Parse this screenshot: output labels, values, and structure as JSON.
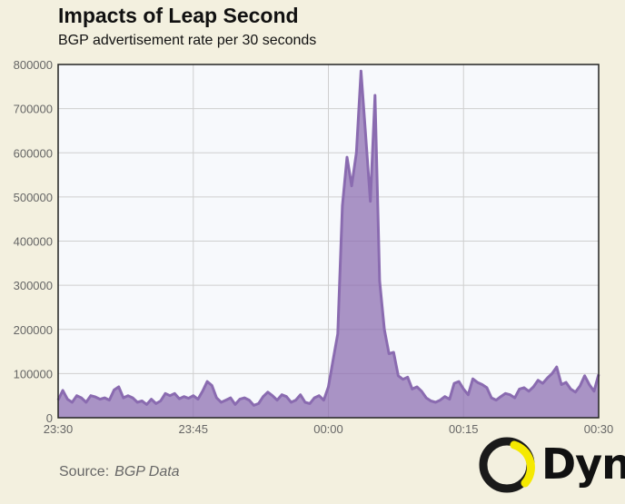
{
  "chart_data": {
    "type": "area",
    "title": "Impacts of Leap Second",
    "subtitle": "BGP advertisement rate per 30 seconds",
    "xlabel": "",
    "ylabel": "",
    "x_start": "23:30",
    "x_end": "00:30",
    "x_ticks": [
      "23:30",
      "23:45",
      "00:00",
      "00:15",
      "00:30"
    ],
    "y_ticks": [
      "0",
      "100000",
      "200000",
      "300000",
      "400000",
      "500000",
      "600000",
      "700000",
      "800000"
    ],
    "ylim": [
      0,
      800000
    ],
    "grid": true,
    "series": [
      {
        "color": "#8a6bb0",
        "values": [
          40000,
          62000,
          42000,
          35000,
          50000,
          45000,
          35000,
          50000,
          47000,
          42000,
          45000,
          40000,
          63000,
          70000,
          45000,
          50000,
          45000,
          35000,
          38000,
          30000,
          42000,
          32000,
          38000,
          55000,
          50000,
          55000,
          43000,
          48000,
          44000,
          50000,
          42000,
          60000,
          82000,
          73000,
          45000,
          35000,
          40000,
          45000,
          30000,
          42000,
          45000,
          40000,
          28000,
          32000,
          48000,
          58000,
          50000,
          40000,
          52000,
          48000,
          35000,
          40000,
          52000,
          35000,
          32000,
          45000,
          50000,
          40000,
          70000,
          130000,
          190000,
          480000,
          590000,
          525000,
          600000,
          785000,
          640000,
          490000,
          730000,
          310000,
          200000,
          145000,
          148000,
          95000,
          87000,
          92000,
          65000,
          70000,
          60000,
          45000,
          38000,
          35000,
          40000,
          48000,
          42000,
          78000,
          82000,
          65000,
          52000,
          88000,
          80000,
          75000,
          68000,
          45000,
          40000,
          48000,
          55000,
          52000,
          45000,
          65000,
          68000,
          60000,
          70000,
          85000,
          78000,
          90000,
          100000,
          115000,
          75000,
          80000,
          65000,
          58000,
          72000,
          95000,
          75000,
          60000,
          98000
        ]
      }
    ]
  },
  "source": {
    "label": "Source:",
    "value": "BGP Data"
  },
  "logo": {
    "text": "Dyn",
    "colors": {
      "ring_dark": "#1a1a1a",
      "ring_accent": "#f5e900"
    }
  }
}
